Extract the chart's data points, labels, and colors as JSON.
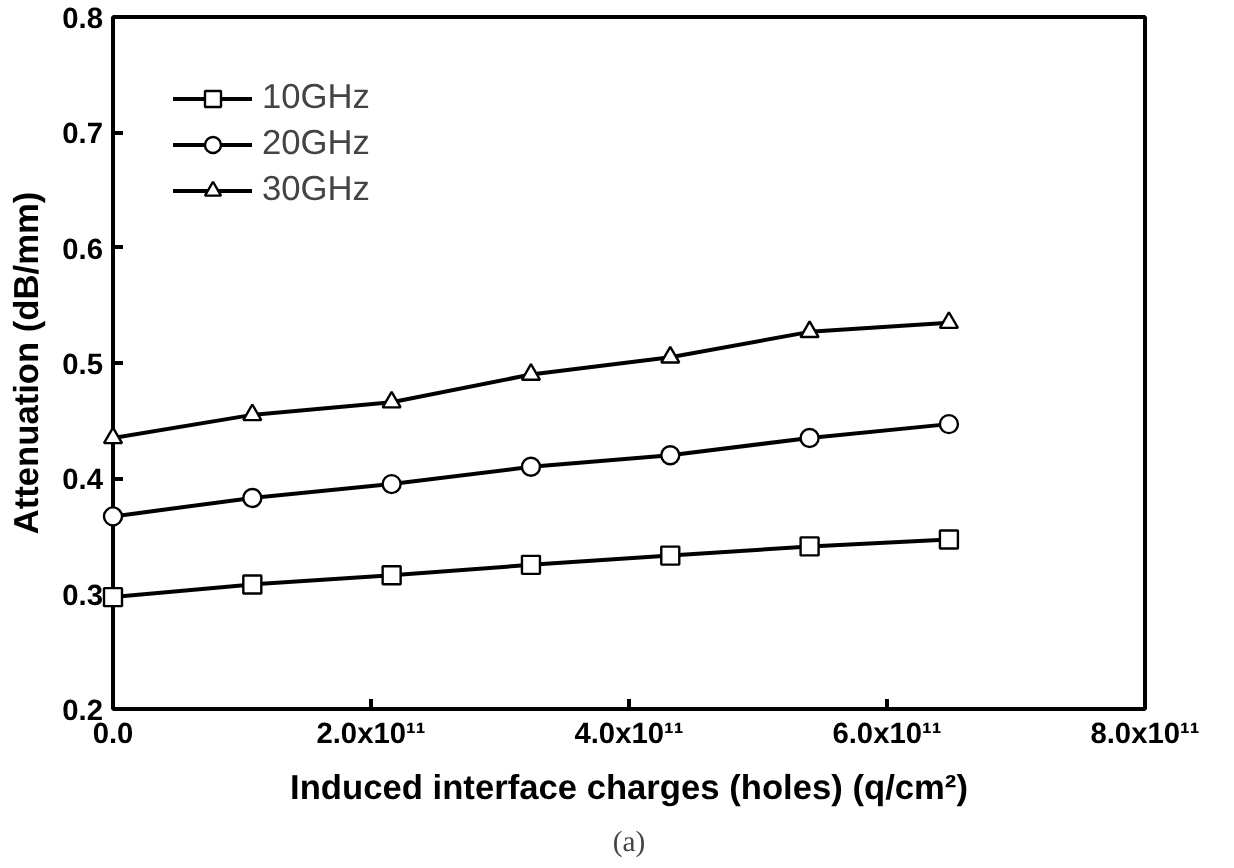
{
  "chart_data": {
    "type": "line",
    "xlabel": "Induced interface charges (holes) (q/cm²)",
    "ylabel": "Attenuation (dB/mm)",
    "x": [
      0,
      108000000000.0,
      216000000000.0,
      324000000000.0,
      432000000000.0,
      540000000000.0,
      648000000000.0
    ],
    "series": [
      {
        "name": "10GHz",
        "color": "#000000",
        "marker": "square",
        "values": [
          0.297,
          0.308,
          0.316,
          0.325,
          0.333,
          0.341,
          0.347
        ]
      },
      {
        "name": "20GHz",
        "color": "#000000",
        "marker": "circle",
        "values": [
          0.367,
          0.383,
          0.395,
          0.41,
          0.42,
          0.435,
          0.447
        ]
      },
      {
        "name": "30GHz",
        "color": "#000000",
        "marker": "triangle",
        "values": [
          0.435,
          0.455,
          0.466,
          0.49,
          0.505,
          0.527,
          0.535
        ]
      }
    ],
    "xlim": [
      0,
      800000000000.0
    ],
    "ylim": [
      0.2,
      0.8
    ],
    "xticks": [
      {
        "value": 0,
        "label": "0.0"
      },
      {
        "value": 200000000000.0,
        "label": "2.0x10¹¹"
      },
      {
        "value": 400000000000.0,
        "label": "4.0x10¹¹"
      },
      {
        "value": 600000000000.0,
        "label": "6.0x10¹¹"
      },
      {
        "value": 800000000000.0,
        "label": "8.0x10¹¹"
      }
    ],
    "yticks": [
      0.2,
      0.3,
      0.4,
      0.5,
      0.6,
      0.7,
      0.8
    ],
    "grid": false,
    "legend": "top left",
    "line_style": "solid",
    "annotations": [
      "(a)"
    ]
  }
}
